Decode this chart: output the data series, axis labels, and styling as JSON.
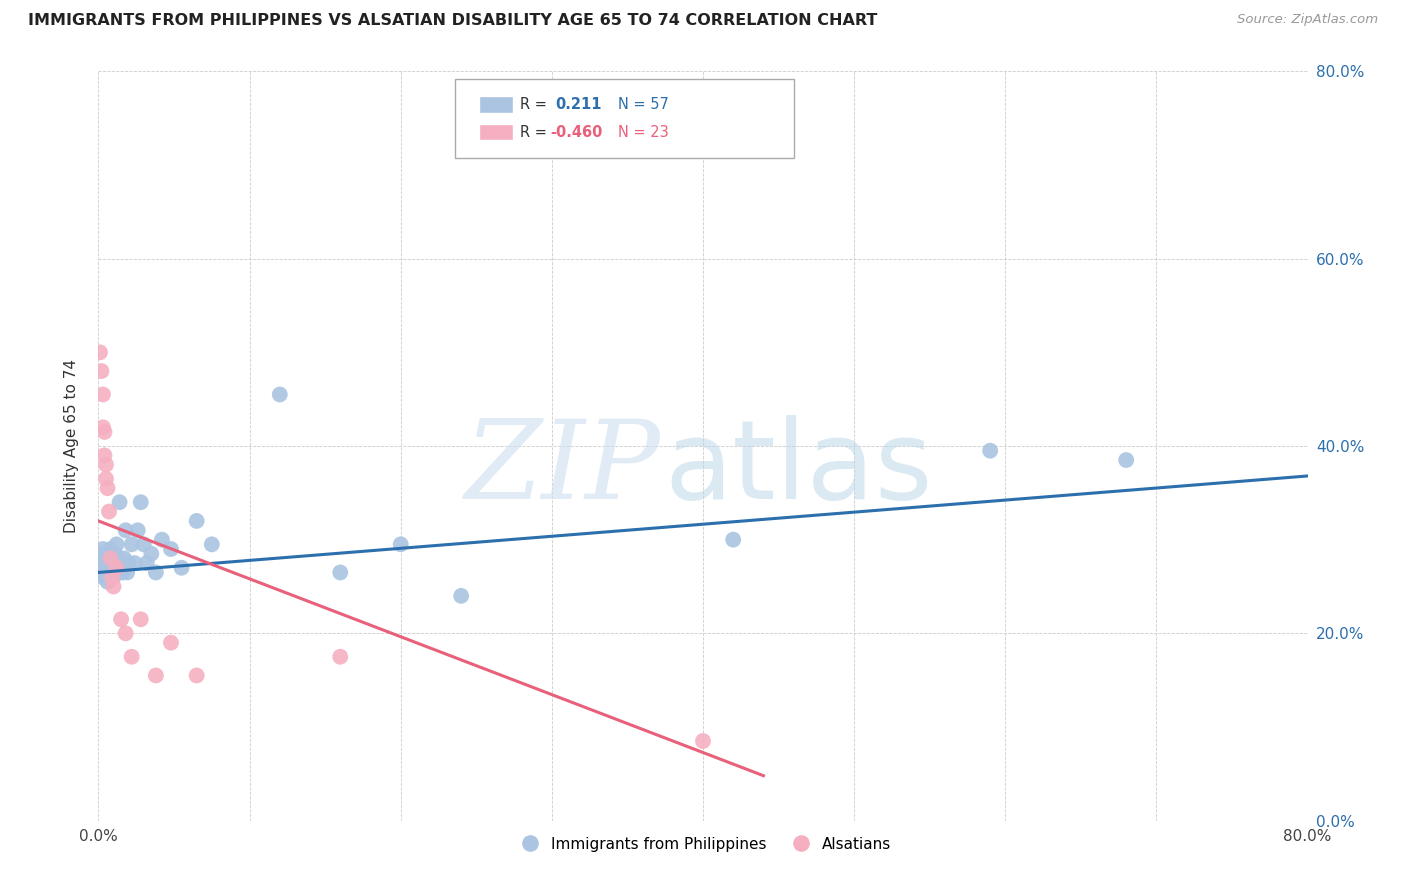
{
  "title": "IMMIGRANTS FROM PHILIPPINES VS ALSATIAN DISABILITY AGE 65 TO 74 CORRELATION CHART",
  "source": "Source: ZipAtlas.com",
  "ylabel": "Disability Age 65 to 74",
  "xlim": [
    0.0,
    0.8
  ],
  "ylim": [
    0.0,
    0.8
  ],
  "blue_R": 0.211,
  "blue_N": 57,
  "pink_R": -0.46,
  "pink_N": 23,
  "blue_color": "#aac4e2",
  "pink_color": "#f5afc0",
  "blue_line_color": "#2c6fad",
  "pink_line_color": "#e8607a",
  "blue_scatter_x": [
    0.001,
    0.002,
    0.002,
    0.003,
    0.003,
    0.003,
    0.004,
    0.004,
    0.004,
    0.005,
    0.005,
    0.005,
    0.006,
    0.006,
    0.006,
    0.007,
    0.007,
    0.007,
    0.008,
    0.008,
    0.008,
    0.009,
    0.009,
    0.01,
    0.01,
    0.011,
    0.011,
    0.012,
    0.013,
    0.013,
    0.014,
    0.015,
    0.016,
    0.017,
    0.018,
    0.019,
    0.02,
    0.022,
    0.024,
    0.026,
    0.028,
    0.03,
    0.032,
    0.035,
    0.038,
    0.042,
    0.048,
    0.055,
    0.065,
    0.075,
    0.12,
    0.16,
    0.2,
    0.24,
    0.42,
    0.59,
    0.68
  ],
  "blue_scatter_y": [
    0.28,
    0.27,
    0.285,
    0.26,
    0.275,
    0.29,
    0.265,
    0.275,
    0.285,
    0.26,
    0.27,
    0.28,
    0.255,
    0.27,
    0.28,
    0.265,
    0.275,
    0.285,
    0.26,
    0.27,
    0.29,
    0.265,
    0.28,
    0.26,
    0.275,
    0.27,
    0.285,
    0.295,
    0.265,
    0.28,
    0.34,
    0.27,
    0.265,
    0.28,
    0.31,
    0.265,
    0.275,
    0.295,
    0.275,
    0.31,
    0.34,
    0.295,
    0.275,
    0.285,
    0.265,
    0.3,
    0.29,
    0.27,
    0.32,
    0.295,
    0.455,
    0.265,
    0.295,
    0.24,
    0.3,
    0.395,
    0.385
  ],
  "pink_scatter_x": [
    0.001,
    0.002,
    0.003,
    0.003,
    0.004,
    0.004,
    0.005,
    0.005,
    0.006,
    0.007,
    0.008,
    0.009,
    0.01,
    0.012,
    0.015,
    0.018,
    0.022,
    0.028,
    0.038,
    0.048,
    0.065,
    0.16,
    0.4
  ],
  "pink_scatter_y": [
    0.5,
    0.48,
    0.455,
    0.42,
    0.415,
    0.39,
    0.38,
    0.365,
    0.355,
    0.33,
    0.28,
    0.26,
    0.25,
    0.27,
    0.215,
    0.2,
    0.175,
    0.215,
    0.155,
    0.19,
    0.155,
    0.175,
    0.085
  ],
  "blue_trendline_x": [
    0.0,
    0.8
  ],
  "blue_trendline_y": [
    0.265,
    0.368
  ],
  "pink_trendline_x": [
    0.0,
    0.44
  ],
  "pink_trendline_y": [
    0.32,
    0.048
  ],
  "ytick_positions": [
    0.0,
    0.2,
    0.4,
    0.6,
    0.8
  ],
  "ytick_labels_right": [
    "0.0%",
    "20.0%",
    "40.0%",
    "60.0%",
    "80.0%"
  ],
  "xtick_positions": [
    0.0,
    0.1,
    0.2,
    0.3,
    0.4,
    0.5,
    0.6,
    0.7,
    0.8
  ],
  "xtick_label_left": "0.0%",
  "xtick_label_right": "80.0%"
}
